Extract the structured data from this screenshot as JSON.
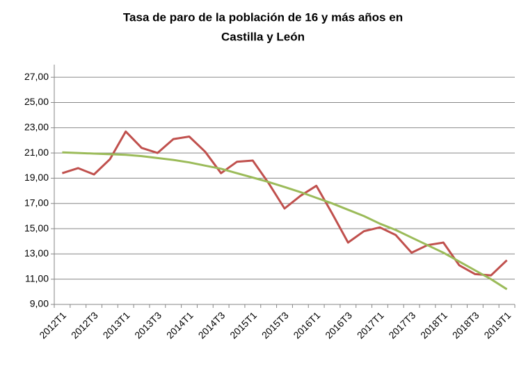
{
  "chart_data": {
    "type": "line",
    "title": [
      "Tasa de paro de la población de 16 y más años en",
      "Castilla y León"
    ],
    "categories": [
      "2012T1",
      null,
      "2012T3",
      null,
      "2013T1",
      null,
      "2013T3",
      null,
      "2014T1",
      null,
      "2014T3",
      null,
      "2015T1",
      null,
      "2015T3",
      null,
      "2016T1",
      null,
      "2016T3",
      null,
      "2017T1",
      null,
      "2017T3",
      null,
      "2018T1",
      null,
      "2018T3",
      null,
      "2019T1"
    ],
    "series": [
      {
        "color": "#c0504d",
        "values": [
          19.4,
          19.8,
          19.3,
          20.5,
          22.7,
          21.4,
          21.0,
          22.1,
          22.3,
          21.1,
          19.4,
          20.3,
          20.4,
          18.6,
          16.6,
          17.6,
          18.4,
          16.2,
          13.9,
          14.8,
          15.1,
          14.5,
          13.1,
          13.7,
          13.9,
          12.1,
          11.4,
          11.3,
          12.5
        ]
      },
      {
        "color": "#9bbb59",
        "values": [
          21.05,
          21.0,
          20.95,
          20.9,
          20.85,
          20.75,
          20.6,
          20.45,
          20.25,
          20.0,
          19.75,
          19.4,
          19.05,
          18.7,
          18.3,
          17.9,
          17.45,
          17.0,
          16.5,
          16.0,
          15.4,
          14.9,
          14.3,
          13.7,
          13.1,
          12.4,
          11.7,
          11.0,
          10.2
        ]
      }
    ],
    "ylim": [
      9,
      28
    ],
    "yticks": [
      {
        "value": 9,
        "label": "9,00"
      },
      {
        "value": 11,
        "label": "11,00"
      },
      {
        "value": 13,
        "label": "13,00"
      },
      {
        "value": 15,
        "label": "15,00"
      },
      {
        "value": 17,
        "label": "17,00"
      },
      {
        "value": 19,
        "label": "19,00"
      },
      {
        "value": 21,
        "label": "21,00"
      },
      {
        "value": 23,
        "label": "23,00"
      },
      {
        "value": 25,
        "label": "25,00"
      },
      {
        "value": 27,
        "label": "27,00"
      }
    ],
    "grid": true
  }
}
